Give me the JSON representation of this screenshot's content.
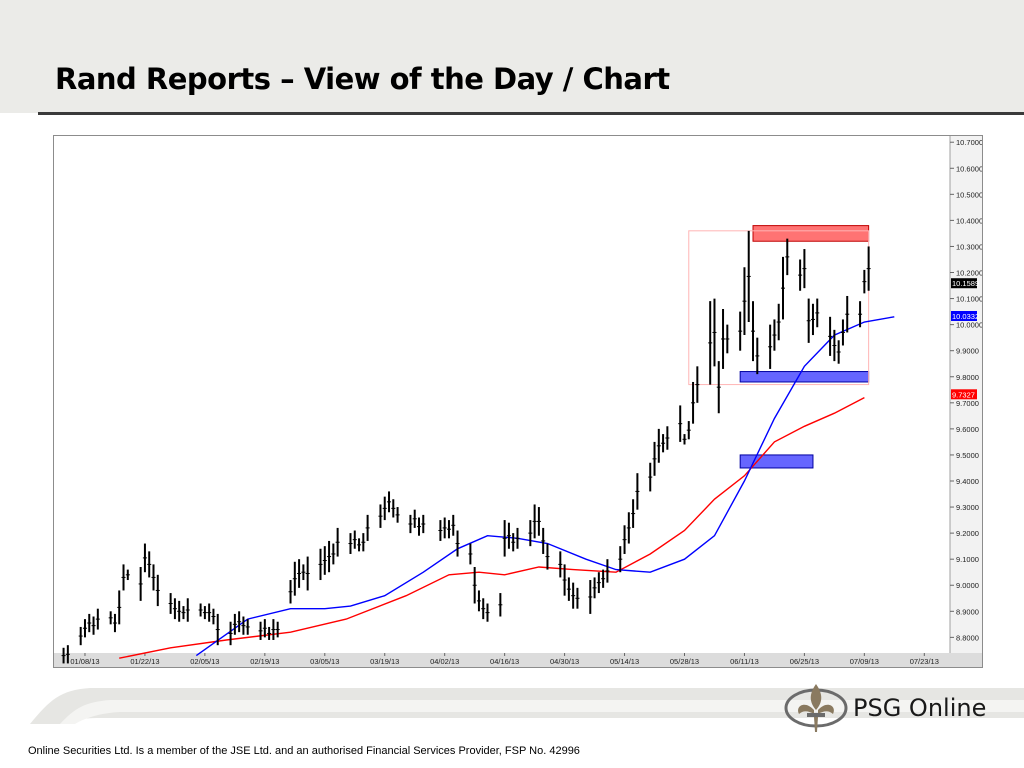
{
  "slide": {
    "title": "Rand Reports – View of the Day / Chart",
    "footer": "Online Securities Ltd. Is a member of the JSE Ltd. and an authorised Financial Services Provider, FSP No. 42996",
    "logo_text": "PSG Online"
  },
  "colors": {
    "price_bars": "#000000",
    "ma_fast": "#0000ff",
    "ma_slow": "#ff0000",
    "resistance_zone": "#ff5a5a",
    "support_zone": "#4b4bff",
    "range_box": "#ffb4b4",
    "header_bg": "#ebebe8"
  },
  "chart_data": {
    "type": "line",
    "title": "",
    "x_tick_labels": [
      "01/08/13",
      "01/22/13",
      "02/05/13",
      "02/19/13",
      "03/05/13",
      "03/19/13",
      "04/02/13",
      "04/16/13",
      "04/30/13",
      "05/14/13",
      "05/28/13",
      "06/11/13",
      "06/25/13",
      "07/09/13",
      "07/23/13"
    ],
    "y_tick_labels": [
      "8.8000",
      "8.9000",
      "9.0000",
      "9.1000",
      "9.2000",
      "9.3000",
      "9.4000",
      "9.5000",
      "9.6000",
      "9.7000",
      "9.8000",
      "9.9000",
      "10.0000",
      "10.1000",
      "10.2000",
      "10.3000",
      "10.4000",
      "10.5000",
      "10.6000",
      "10.7000"
    ],
    "ylim": [
      8.74,
      10.72
    ],
    "x_domain": [
      "01/01/13",
      "07/29/13"
    ],
    "price_labels": [
      {
        "text": "10.1589",
        "value": 10.1589,
        "style": "last price"
      },
      {
        "text": "10.0332",
        "value": 10.0332,
        "style": "blue moving average"
      },
      {
        "text": "9.7327",
        "value": 9.7327,
        "style": "red moving average"
      }
    ],
    "series": [
      {
        "style": "ohlc bars",
        "points": [
          {
            "date": "01/03/13",
            "high": 8.76,
            "low": 8.7
          },
          {
            "date": "01/04/13",
            "high": 8.77,
            "low": 8.7
          },
          {
            "date": "01/07/13",
            "high": 8.84,
            "low": 8.77
          },
          {
            "date": "01/08/13",
            "high": 8.87,
            "low": 8.8
          },
          {
            "date": "01/09/13",
            "high": 8.89,
            "low": 8.82
          },
          {
            "date": "01/10/13",
            "high": 8.88,
            "low": 8.81
          },
          {
            "date": "01/11/13",
            "high": 8.91,
            "low": 8.83
          },
          {
            "date": "01/14/13",
            "high": 8.9,
            "low": 8.85
          },
          {
            "date": "01/15/13",
            "high": 8.89,
            "low": 8.82
          },
          {
            "date": "01/16/13",
            "high": 8.98,
            "low": 8.85
          },
          {
            "date": "01/17/13",
            "high": 9.08,
            "low": 8.98
          },
          {
            "date": "01/18/13",
            "high": 9.06,
            "low": 9.02
          },
          {
            "date": "01/21/13",
            "high": 9.07,
            "low": 8.94
          },
          {
            "date": "01/22/13",
            "high": 9.16,
            "low": 9.05
          },
          {
            "date": "01/23/13",
            "high": 9.13,
            "low": 9.03
          },
          {
            "date": "01/24/13",
            "high": 9.08,
            "low": 8.98
          },
          {
            "date": "01/25/13",
            "high": 9.04,
            "low": 8.92
          },
          {
            "date": "01/28/13",
            "high": 8.97,
            "low": 8.89
          },
          {
            "date": "01/29/13",
            "high": 8.95,
            "low": 8.87
          },
          {
            "date": "01/30/13",
            "high": 8.94,
            "low": 8.86
          },
          {
            "date": "01/31/13",
            "high": 8.92,
            "low": 8.87
          },
          {
            "date": "02/01/13",
            "high": 8.95,
            "low": 8.86
          },
          {
            "date": "02/04/13",
            "high": 8.93,
            "low": 8.88
          },
          {
            "date": "02/05/13",
            "high": 8.92,
            "low": 8.87
          },
          {
            "date": "02/06/13",
            "high": 8.93,
            "low": 8.86
          },
          {
            "date": "02/07/13",
            "high": 8.91,
            "low": 8.85
          },
          {
            "date": "02/08/13",
            "high": 8.89,
            "low": 8.77
          },
          {
            "date": "02/11/13",
            "high": 8.86,
            "low": 8.77
          },
          {
            "date": "02/12/13",
            "high": 8.89,
            "low": 8.81
          },
          {
            "date": "02/13/13",
            "high": 8.9,
            "low": 8.82
          },
          {
            "date": "02/14/13",
            "high": 8.88,
            "low": 8.81
          },
          {
            "date": "02/15/13",
            "high": 8.87,
            "low": 8.81
          },
          {
            "date": "02/18/13",
            "high": 8.86,
            "low": 8.79
          },
          {
            "date": "02/19/13",
            "high": 8.87,
            "low": 8.8
          },
          {
            "date": "02/20/13",
            "high": 8.84,
            "low": 8.79
          },
          {
            "date": "02/21/13",
            "high": 8.87,
            "low": 8.79
          },
          {
            "date": "02/22/13",
            "high": 8.86,
            "low": 8.8
          },
          {
            "date": "02/25/13",
            "high": 9.02,
            "low": 8.93
          },
          {
            "date": "02/26/13",
            "high": 9.09,
            "low": 8.96
          },
          {
            "date": "02/27/13",
            "high": 9.1,
            "low": 8.99
          },
          {
            "date": "02/28/13",
            "high": 9.08,
            "low": 9.02
          },
          {
            "date": "03/01/13",
            "high": 9.11,
            "low": 8.98
          },
          {
            "date": "03/04/13",
            "high": 9.14,
            "low": 9.02
          },
          {
            "date": "03/05/13",
            "high": 9.15,
            "low": 9.04
          },
          {
            "date": "03/06/13",
            "high": 9.17,
            "low": 9.05
          },
          {
            "date": "03/07/13",
            "high": 9.16,
            "low": 9.08
          },
          {
            "date": "03/08/13",
            "high": 9.22,
            "low": 9.11
          },
          {
            "date": "03/11/13",
            "high": 9.2,
            "low": 9.12
          },
          {
            "date": "03/12/13",
            "high": 9.21,
            "low": 9.14
          },
          {
            "date": "03/13/13",
            "high": 9.18,
            "low": 9.13
          },
          {
            "date": "03/14/13",
            "high": 9.2,
            "low": 9.13
          },
          {
            "date": "03/15/13",
            "high": 9.27,
            "low": 9.17
          },
          {
            "date": "03/18/13",
            "high": 9.31,
            "low": 9.22
          },
          {
            "date": "03/19/13",
            "high": 9.34,
            "low": 9.25
          },
          {
            "date": "03/20/13",
            "high": 9.36,
            "low": 9.28
          },
          {
            "date": "03/21/13",
            "high": 9.33,
            "low": 9.26
          },
          {
            "date": "03/22/13",
            "high": 9.3,
            "low": 9.24
          },
          {
            "date": "03/25/13",
            "high": 9.27,
            "low": 9.2
          },
          {
            "date": "03/26/13",
            "high": 9.29,
            "low": 9.22
          },
          {
            "date": "03/27/13",
            "high": 9.26,
            "low": 9.19
          },
          {
            "date": "03/28/13",
            "high": 9.27,
            "low": 9.2
          },
          {
            "date": "04/01/13",
            "high": 9.25,
            "low": 9.17
          },
          {
            "date": "04/02/13",
            "high": 9.26,
            "low": 9.18
          },
          {
            "date": "04/03/13",
            "high": 9.25,
            "low": 9.18
          },
          {
            "date": "04/04/13",
            "high": 9.27,
            "low": 9.19
          },
          {
            "date": "04/05/13",
            "high": 9.21,
            "low": 9.11
          },
          {
            "date": "04/08/13",
            "high": 9.16,
            "low": 9.08
          },
          {
            "date": "04/09/13",
            "high": 9.07,
            "low": 8.93
          },
          {
            "date": "04/10/13",
            "high": 8.98,
            "low": 8.9
          },
          {
            "date": "04/11/13",
            "high": 8.95,
            "low": 8.87
          },
          {
            "date": "04/12/13",
            "high": 8.93,
            "low": 8.86
          },
          {
            "date": "04/15/13",
            "high": 8.97,
            "low": 8.88
          },
          {
            "date": "04/16/13",
            "high": 9.25,
            "low": 9.11
          },
          {
            "date": "04/17/13",
            "high": 9.24,
            "low": 9.14
          },
          {
            "date": "04/18/13",
            "high": 9.2,
            "low": 9.13
          },
          {
            "date": "04/19/13",
            "high": 9.22,
            "low": 9.14
          },
          {
            "date": "04/22/13",
            "high": 9.25,
            "low": 9.15
          },
          {
            "date": "04/23/13",
            "high": 9.31,
            "low": 9.18
          },
          {
            "date": "04/24/13",
            "high": 9.3,
            "low": 9.19
          },
          {
            "date": "04/25/13",
            "high": 9.22,
            "low": 9.12
          },
          {
            "date": "04/26/13",
            "high": 9.16,
            "low": 9.06
          },
          {
            "date": "04/29/13",
            "high": 9.13,
            "low": 9.03
          },
          {
            "date": "04/30/13",
            "high": 9.08,
            "low": 8.96
          },
          {
            "date": "05/01/13",
            "high": 9.03,
            "low": 8.94
          },
          {
            "date": "05/02/13",
            "high": 9.01,
            "low": 8.91
          },
          {
            "date": "05/03/13",
            "high": 8.99,
            "low": 8.91
          },
          {
            "date": "05/06/13",
            "high": 9.02,
            "low": 8.89
          },
          {
            "date": "05/07/13",
            "high": 9.03,
            "low": 8.95
          },
          {
            "date": "05/08/13",
            "high": 9.05,
            "low": 8.97
          },
          {
            "date": "05/09/13",
            "high": 9.06,
            "low": 8.99
          },
          {
            "date": "05/10/13",
            "high": 9.1,
            "low": 9.01
          },
          {
            "date": "05/13/13",
            "high": 9.15,
            "low": 9.05
          },
          {
            "date": "05/14/13",
            "high": 9.23,
            "low": 9.12
          },
          {
            "date": "05/15/13",
            "high": 9.28,
            "low": 9.16
          },
          {
            "date": "05/16/13",
            "high": 9.33,
            "low": 9.22
          },
          {
            "date": "05/17/13",
            "high": 9.43,
            "low": 9.29
          },
          {
            "date": "05/20/13",
            "high": 9.47,
            "low": 9.36
          },
          {
            "date": "05/21/13",
            "high": 9.55,
            "low": 9.42
          },
          {
            "date": "05/22/13",
            "high": 9.6,
            "low": 9.47
          },
          {
            "date": "05/23/13",
            "high": 9.58,
            "low": 9.51
          },
          {
            "date": "05/24/13",
            "high": 9.61,
            "low": 9.52
          },
          {
            "date": "05/27/13",
            "high": 9.69,
            "low": 9.55
          },
          {
            "date": "05/28/13",
            "high": 9.58,
            "low": 9.54
          },
          {
            "date": "05/29/13",
            "high": 9.63,
            "low": 9.56
          },
          {
            "date": "05/30/13",
            "high": 9.78,
            "low": 9.62
          },
          {
            "date": "05/31/13",
            "high": 9.84,
            "low": 9.7
          },
          {
            "date": "06/03/13",
            "high": 10.09,
            "low": 9.77
          },
          {
            "date": "06/04/13",
            "high": 10.1,
            "low": 9.84
          },
          {
            "date": "06/05/13",
            "high": 9.86,
            "low": 9.66
          },
          {
            "date": "06/06/13",
            "high": 10.06,
            "low": 9.83
          },
          {
            "date": "06/07/13",
            "high": 10.0,
            "low": 9.89
          },
          {
            "date": "06/10/13",
            "high": 10.05,
            "low": 9.9
          },
          {
            "date": "06/11/13",
            "high": 10.22,
            "low": 9.96
          },
          {
            "date": "06/12/13",
            "high": 10.36,
            "low": 10.01
          },
          {
            "date": "06/13/13",
            "high": 10.09,
            "low": 9.86
          },
          {
            "date": "06/14/13",
            "high": 9.95,
            "low": 9.81
          },
          {
            "date": "06/17/13",
            "high": 10.0,
            "low": 9.83
          },
          {
            "date": "06/18/13",
            "high": 10.02,
            "low": 9.9
          },
          {
            "date": "06/19/13",
            "high": 10.08,
            "low": 9.94
          },
          {
            "date": "06/20/13",
            "high": 10.26,
            "low": 10.02
          },
          {
            "date": "06/21/13",
            "high": 10.33,
            "low": 10.19
          },
          {
            "date": "06/24/13",
            "high": 10.25,
            "low": 10.13
          },
          {
            "date": "06/25/13",
            "high": 10.29,
            "low": 10.14
          },
          {
            "date": "06/26/13",
            "high": 10.1,
            "low": 9.93
          },
          {
            "date": "06/27/13",
            "high": 10.08,
            "low": 9.96
          },
          {
            "date": "06/28/13",
            "high": 10.1,
            "low": 9.99
          },
          {
            "date": "07/01/13",
            "high": 10.03,
            "low": 9.88
          },
          {
            "date": "07/02/13",
            "high": 9.98,
            "low": 9.86
          },
          {
            "date": "07/03/13",
            "high": 9.94,
            "low": 9.85
          },
          {
            "date": "07/04/13",
            "high": 10.02,
            "low": 9.92
          },
          {
            "date": "07/05/13",
            "high": 10.11,
            "low": 9.97
          },
          {
            "date": "07/08/13",
            "high": 10.09,
            "low": 9.99
          },
          {
            "date": "07/09/13",
            "high": 10.21,
            "low": 10.12
          },
          {
            "date": "07/10/13",
            "high": 10.3,
            "low": 10.13
          }
        ]
      },
      {
        "style": "blue moving average line",
        "points": [
          [
            "02/03/13",
            8.73
          ],
          [
            "02/15/13",
            8.87
          ],
          [
            "02/25/13",
            8.91
          ],
          [
            "03/05/13",
            8.91
          ],
          [
            "03/11/13",
            8.92
          ],
          [
            "03/19/13",
            8.96
          ],
          [
            "03/28/13",
            9.05
          ],
          [
            "04/05/13",
            9.14
          ],
          [
            "04/12/13",
            9.19
          ],
          [
            "04/19/13",
            9.18
          ],
          [
            "04/26/13",
            9.16
          ],
          [
            "05/05/13",
            9.1
          ],
          [
            "05/12/13",
            9.06
          ],
          [
            "05/20/13",
            9.05
          ],
          [
            "05/28/13",
            9.1
          ],
          [
            "06/04/13",
            9.19
          ],
          [
            "06/11/13",
            9.4
          ],
          [
            "06/18/13",
            9.64
          ],
          [
            "06/25/13",
            9.84
          ],
          [
            "07/02/13",
            9.96
          ],
          [
            "07/09/13",
            10.01
          ],
          [
            "07/16/13",
            10.03
          ]
        ]
      },
      {
        "style": "red moving average line",
        "points": [
          [
            "01/16/13",
            8.72
          ],
          [
            "01/28/13",
            8.76
          ],
          [
            "02/10/13",
            8.79
          ],
          [
            "02/25/13",
            8.82
          ],
          [
            "03/10/13",
            8.87
          ],
          [
            "03/24/13",
            8.96
          ],
          [
            "04/03/13",
            9.04
          ],
          [
            "04/10/13",
            9.05
          ],
          [
            "04/16/13",
            9.04
          ],
          [
            "04/24/13",
            9.07
          ],
          [
            "05/02/13",
            9.06
          ],
          [
            "05/12/13",
            9.05
          ],
          [
            "05/20/13",
            9.12
          ],
          [
            "05/28/13",
            9.21
          ],
          [
            "06/04/13",
            9.33
          ],
          [
            "06/11/13",
            9.42
          ],
          [
            "06/18/13",
            9.55
          ],
          [
            "06/25/13",
            9.61
          ],
          [
            "07/02/13",
            9.66
          ],
          [
            "07/09/13",
            9.72
          ]
        ]
      }
    ],
    "annotations": [
      {
        "style": "red resistance zone",
        "x_from": "06/13/13",
        "x_to": "07/10/13",
        "y_from": 10.32,
        "y_to": 10.38
      },
      {
        "style": "blue support zone",
        "x_from": "06/10/13",
        "x_to": "07/10/13",
        "y_from": 9.78,
        "y_to": 9.82
      },
      {
        "style": "blue support zone",
        "x_from": "06/10/13",
        "x_to": "06/27/13",
        "y_from": 9.45,
        "y_to": 9.5
      },
      {
        "style": "pink range box",
        "x_from": "05/29/13",
        "x_to": "07/10/13",
        "y_from": 9.77,
        "y_to": 10.36
      }
    ],
    "grid": false
  }
}
